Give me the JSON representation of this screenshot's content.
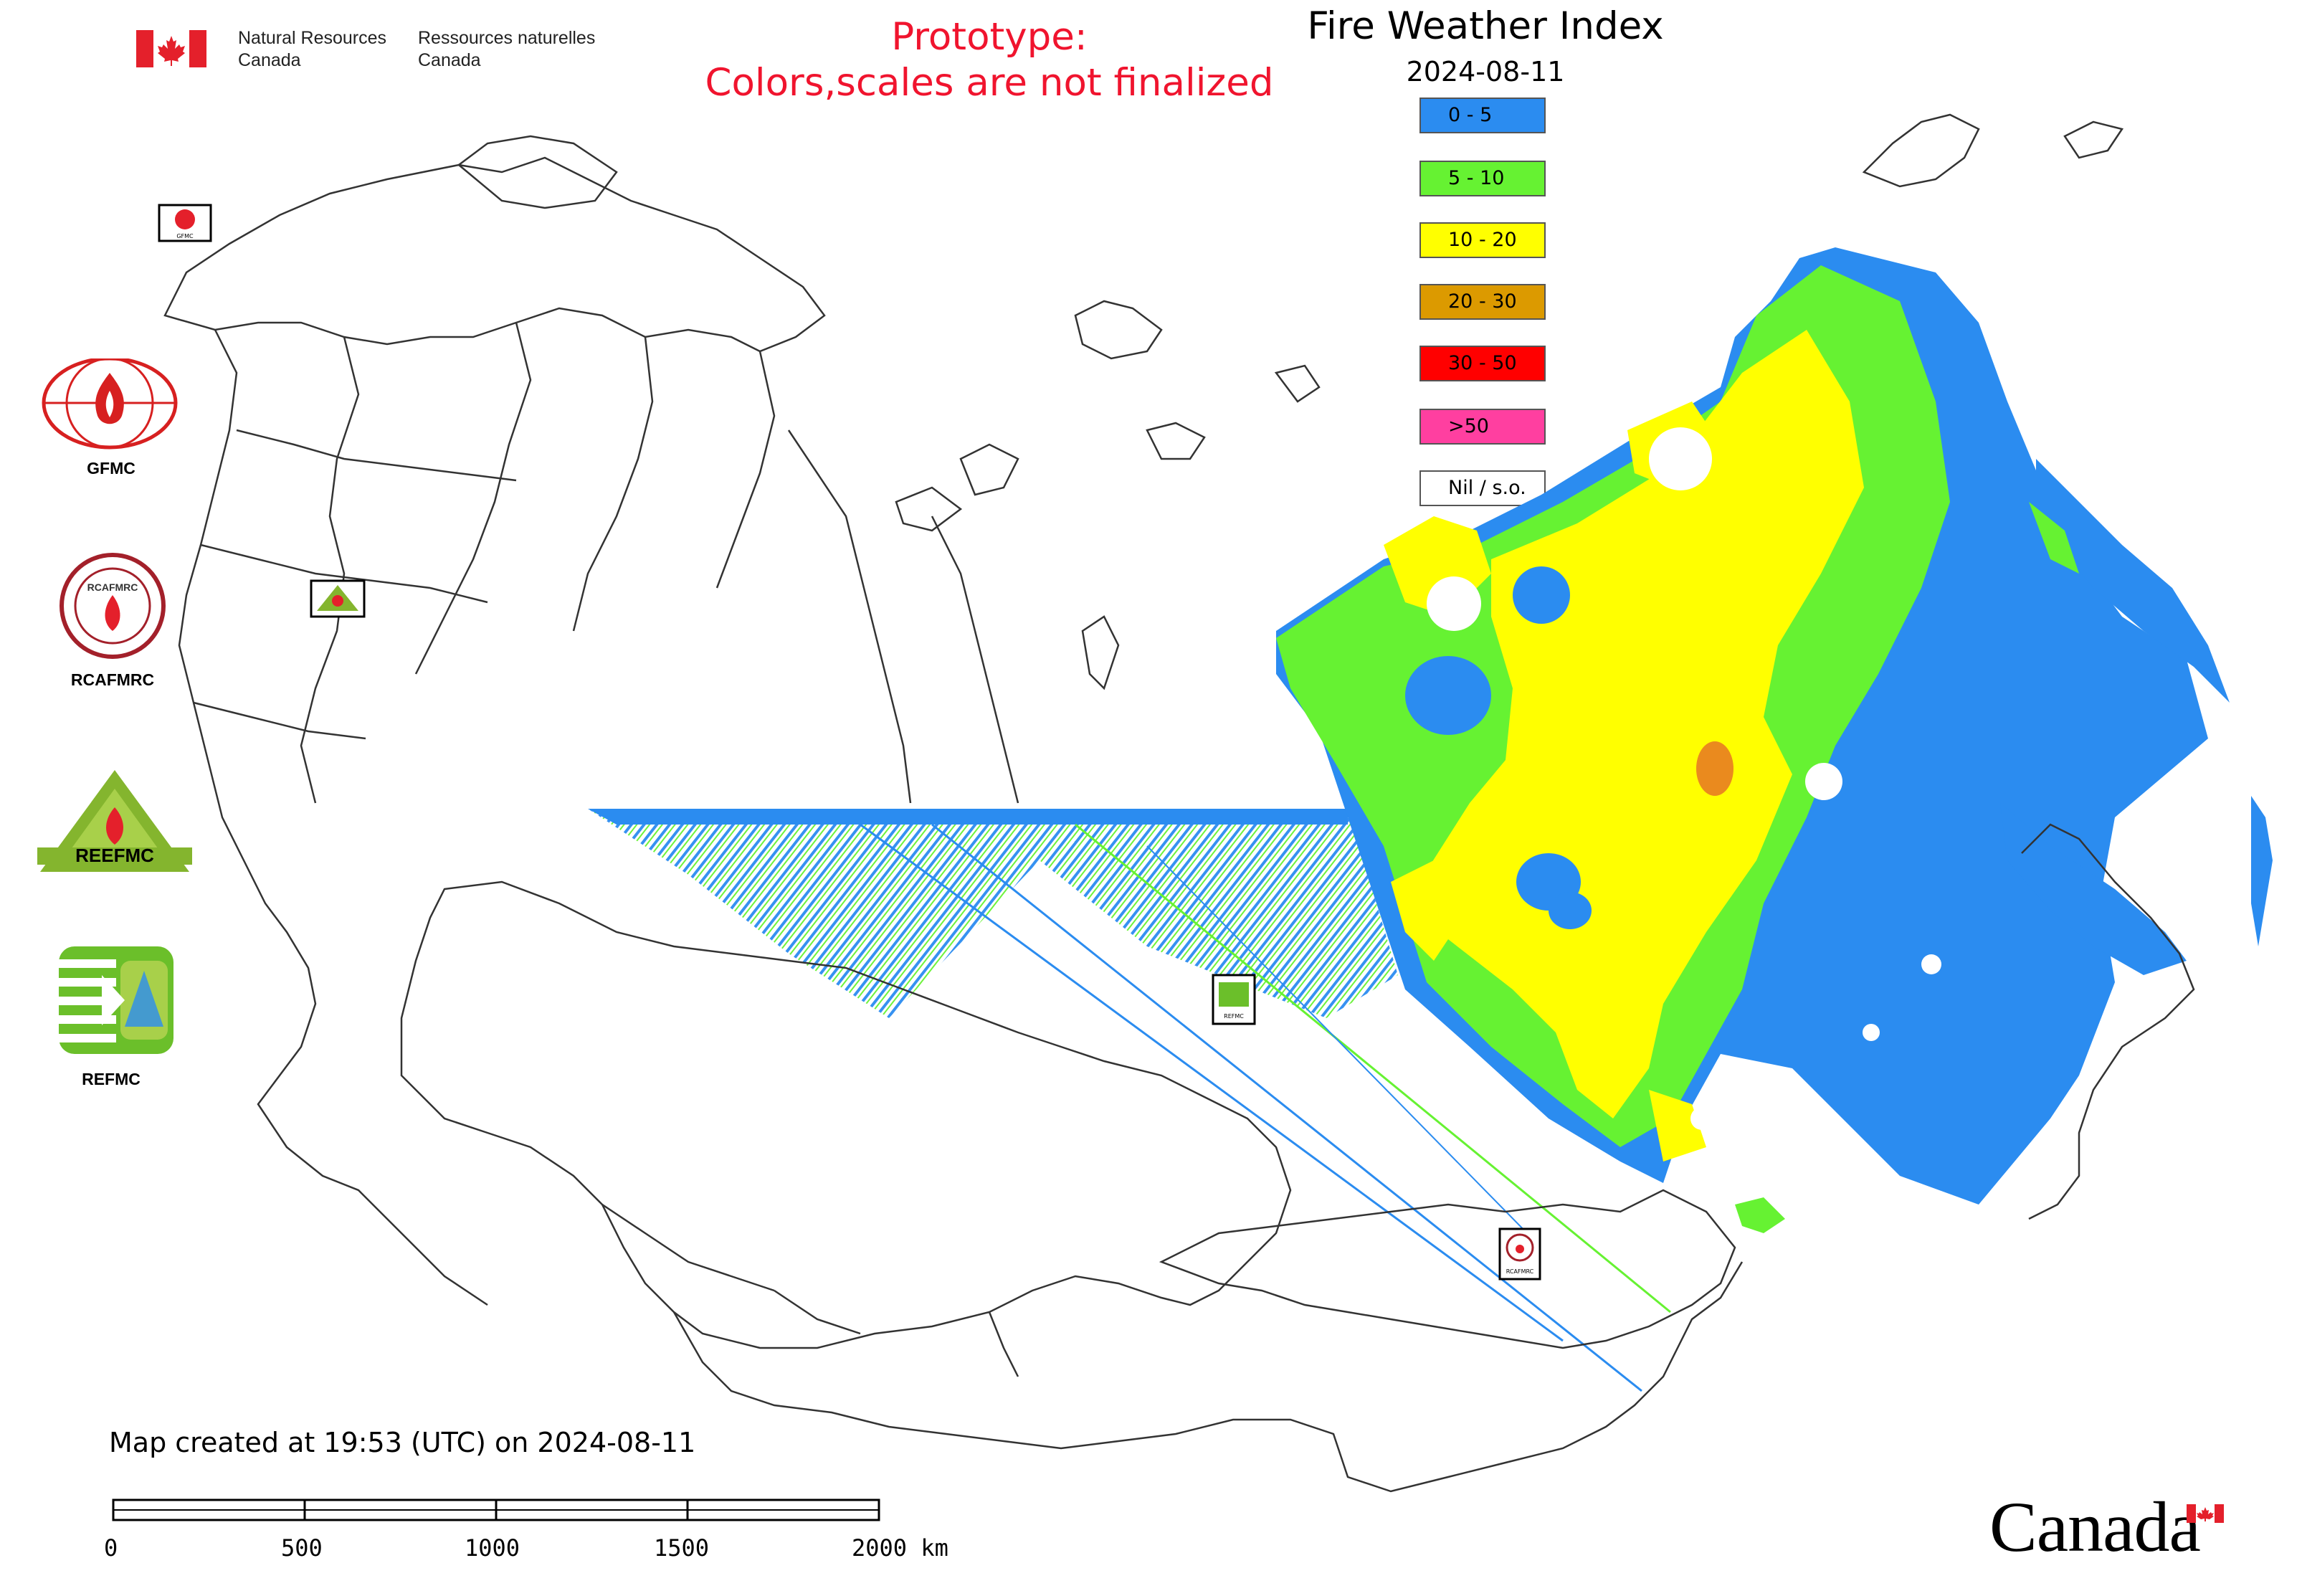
{
  "header": {
    "org_en_line1": "Natural Resources",
    "org_en_line2": "Canada",
    "org_fr_line1": "Ressources naturelles",
    "org_fr_line2": "Canada",
    "prototype_line1": "Prototype:",
    "prototype_line2": "Colors,scales are not finalized",
    "title": "Fire Weather Index",
    "date": "2024-08-11"
  },
  "legend": {
    "items": [
      {
        "label": "0 - 5",
        "color": "#2b8cf0"
      },
      {
        "label": "5 - 10",
        "color": "#66f232"
      },
      {
        "label": "10 - 20",
        "color": "#ffff00"
      },
      {
        "label": "20 - 30",
        "color": "#dc9a00"
      },
      {
        "label": "30 - 50",
        "color": "#ff0000"
      },
      {
        "label": ">50",
        "color": "#ff3fa0"
      },
      {
        "label": "Nil / s.o.",
        "color": "#ffffff"
      }
    ]
  },
  "logos": {
    "gfmc": "GFMC",
    "rcafmrc": "RCAFMRC",
    "reefmc_text": "REEFMC",
    "refmc": "REFMC"
  },
  "map_markers": {
    "small_gfmc": "GFMC",
    "small_refmc": "REFMC",
    "small_rcafmrc": "RCAFMRC",
    "small_reefmc": "REEFMC"
  },
  "footer": {
    "created": "Map created at 19:53 (UTC) on 2024-08-11",
    "scale_ticks": [
      "0",
      "500",
      "1000",
      "1500",
      "2000 km"
    ],
    "wordmark": "Canada"
  },
  "colors": {
    "canada_red": "#e4202b",
    "prototype_red": "#f0142e",
    "border_gray": "#333333"
  }
}
